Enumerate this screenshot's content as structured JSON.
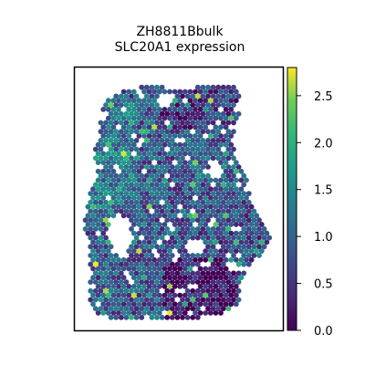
{
  "chart_data": {
    "type": "scatter",
    "subtype": "spatial-hex-heatmap",
    "title": "ZH8811Bbulk",
    "subtitle": "SLC20A1 expression",
    "xlabel": "",
    "ylabel": "",
    "colormap": "viridis",
    "color_range": [
      0.0,
      2.8
    ],
    "colorbar": {
      "ticks": [
        0.0,
        0.5,
        1.0,
        1.5,
        2.0,
        2.5
      ],
      "tick_labels": [
        "0.0",
        "0.5",
        "1.0",
        "1.5",
        "2.0",
        "2.5"
      ],
      "placement": "right"
    },
    "grid": false,
    "axes_ticks_visible": false,
    "tissue_summary": {
      "low_expression_color": "#440154",
      "mid_expression_color": "#31688e",
      "high_expression_color": "#fde725"
    }
  }
}
